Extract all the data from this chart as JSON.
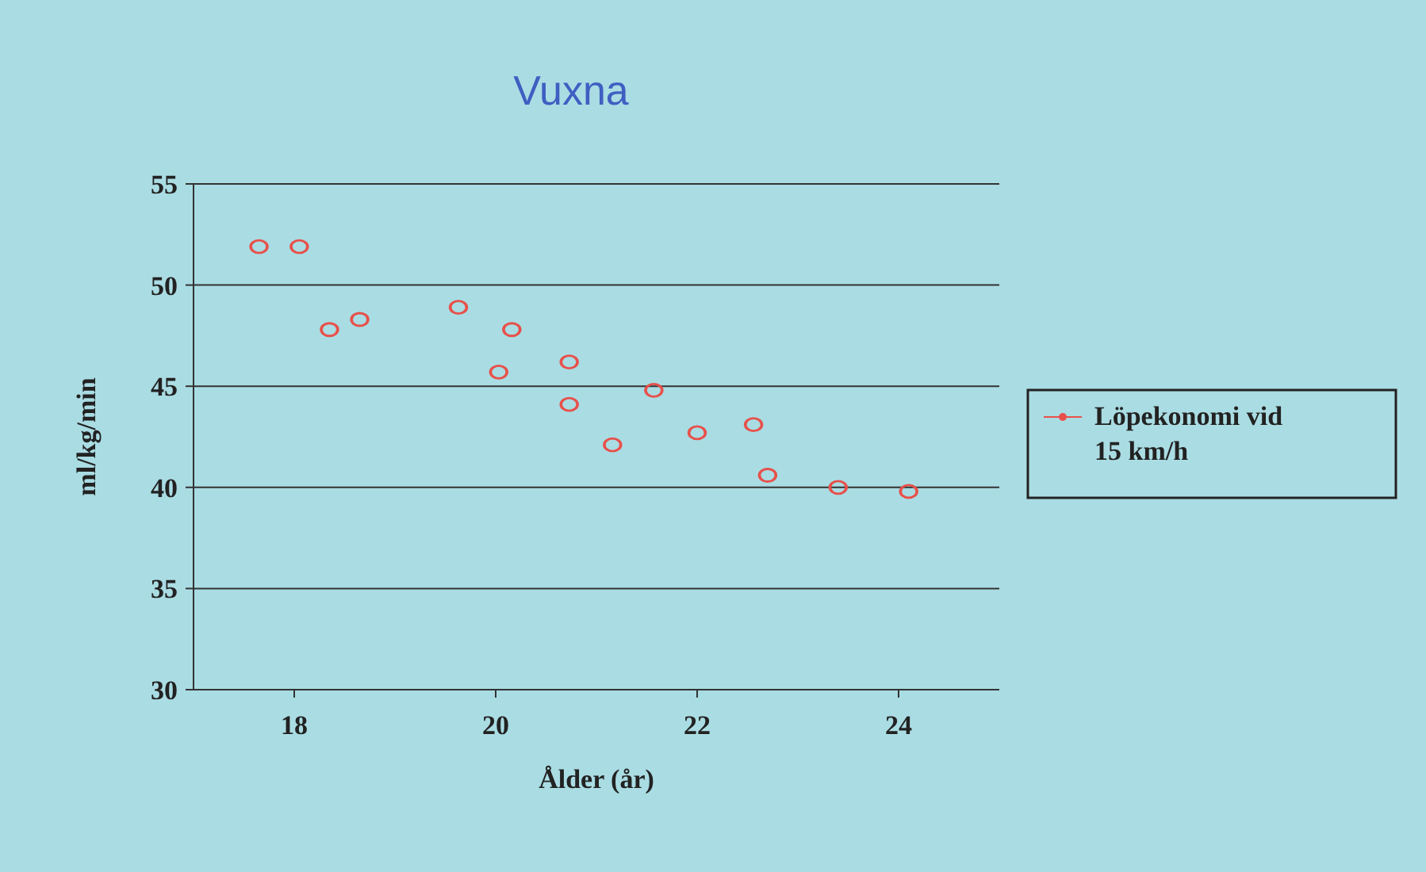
{
  "chart_data": {
    "type": "scatter",
    "title": "Vuxna",
    "xlabel": "Ålder (år)",
    "ylabel": "ml/kg/min",
    "xlim": [
      17,
      25
    ],
    "xticks": [
      18,
      20,
      22,
      24
    ],
    "ylim": [
      30,
      55
    ],
    "yticks": [
      30,
      35,
      40,
      45,
      50,
      55
    ],
    "grid": "y",
    "legend": "right",
    "marker": "circle",
    "series": [
      {
        "name": "Löpekonomi vid 15 km/h",
        "color": "#e8504a",
        "x": [
          17.65,
          18.05,
          18.35,
          18.65,
          19.63,
          20.16,
          20.03,
          20.73,
          20.73,
          21.16,
          21.57,
          22.0,
          22.56,
          22.7,
          23.4,
          24.1
        ],
        "values": [
          51.9,
          51.9,
          47.8,
          48.3,
          48.9,
          47.8,
          45.7,
          46.2,
          44.1,
          42.1,
          44.8,
          42.7,
          43.1,
          40.6,
          40.0,
          39.8
        ]
      }
    ]
  }
}
